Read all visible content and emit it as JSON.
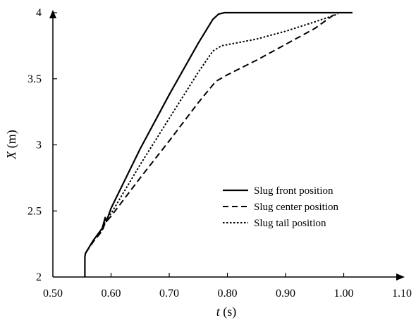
{
  "chart_data": {
    "type": "line",
    "title": "",
    "xlabel": {
      "symbol": "t",
      "unit": " (s)"
    },
    "ylabel": {
      "symbol": "X",
      "unit": " (m)"
    },
    "xlim": [
      0.5,
      1.1
    ],
    "ylim": [
      2,
      4
    ],
    "x_ticks": [
      "0.50",
      "0.60",
      "0.70",
      "0.80",
      "0.90",
      "1.00",
      "1.10"
    ],
    "y_ticks": [
      "2",
      "2.5",
      "3",
      "3.5",
      "4"
    ],
    "grid": false,
    "legend_position": "center-right",
    "series": [
      {
        "name": "Slug front position",
        "style": "solid",
        "color": "#000000",
        "points": [
          [
            0.555,
            2.0
          ],
          [
            0.555,
            2.15
          ],
          [
            0.556,
            2.18
          ],
          [
            0.57,
            2.28
          ],
          [
            0.585,
            2.37
          ],
          [
            0.59,
            2.45
          ],
          [
            0.592,
            2.42
          ],
          [
            0.6,
            2.52
          ],
          [
            0.65,
            2.97
          ],
          [
            0.7,
            3.38
          ],
          [
            0.75,
            3.77
          ],
          [
            0.775,
            3.95
          ],
          [
            0.785,
            3.99
          ],
          [
            0.795,
            4.0
          ],
          [
            0.85,
            4.0
          ],
          [
            0.95,
            4.0
          ],
          [
            1.015,
            4.0
          ]
        ]
      },
      {
        "name": "Slug center position",
        "style": "dashed",
        "color": "#000000",
        "points": [
          [
            0.556,
            2.18
          ],
          [
            0.57,
            2.27
          ],
          [
            0.585,
            2.35
          ],
          [
            0.59,
            2.41
          ],
          [
            0.6,
            2.46
          ],
          [
            0.65,
            2.75
          ],
          [
            0.7,
            3.03
          ],
          [
            0.75,
            3.32
          ],
          [
            0.78,
            3.48
          ],
          [
            0.8,
            3.53
          ],
          [
            0.85,
            3.64
          ],
          [
            0.9,
            3.76
          ],
          [
            0.95,
            3.88
          ],
          [
            0.985,
            3.99
          ]
        ]
      },
      {
        "name": "Slug tail position",
        "style": "dotted",
        "color": "#000000",
        "points": [
          [
            0.556,
            2.18
          ],
          [
            0.57,
            2.28
          ],
          [
            0.585,
            2.36
          ],
          [
            0.59,
            2.43
          ],
          [
            0.6,
            2.48
          ],
          [
            0.65,
            2.85
          ],
          [
            0.7,
            3.2
          ],
          [
            0.75,
            3.55
          ],
          [
            0.775,
            3.71
          ],
          [
            0.79,
            3.75
          ],
          [
            0.85,
            3.8
          ],
          [
            0.9,
            3.86
          ],
          [
            0.95,
            3.93
          ],
          [
            0.99,
            3.99
          ]
        ]
      }
    ]
  }
}
